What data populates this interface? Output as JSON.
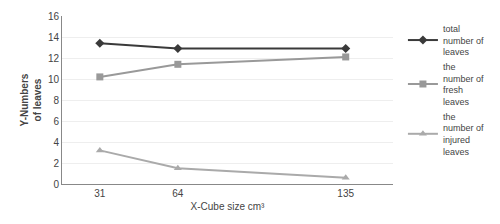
{
  "chart_data": {
    "type": "line",
    "x": [
      31,
      64,
      135
    ],
    "xlim": [
      15,
      155
    ],
    "xticks": [
      31,
      64,
      135
    ],
    "ylim": [
      0,
      16
    ],
    "yticks": [
      0,
      2,
      4,
      6,
      8,
      10,
      12,
      14,
      16
    ],
    "xlabel": "X-Cube size cm³",
    "ylabel": "Y-Numbers\nof leaves",
    "grid": "y",
    "legend": "right",
    "series": [
      {
        "name": "total\nnumber of\nleaves",
        "color": "#3a3a3a",
        "marker": "diamond",
        "values": [
          13.4,
          12.9,
          12.9
        ]
      },
      {
        "name": "the\nnumber of\nfresh\nleaves",
        "color": "#999999",
        "marker": "square",
        "values": [
          10.2,
          11.4,
          12.1
        ]
      },
      {
        "name": "the\nnumber of\ninjured\nleaves",
        "color": "#aaaaaa",
        "marker": "triangle-up",
        "values": [
          3.2,
          1.5,
          0.6
        ]
      }
    ]
  }
}
